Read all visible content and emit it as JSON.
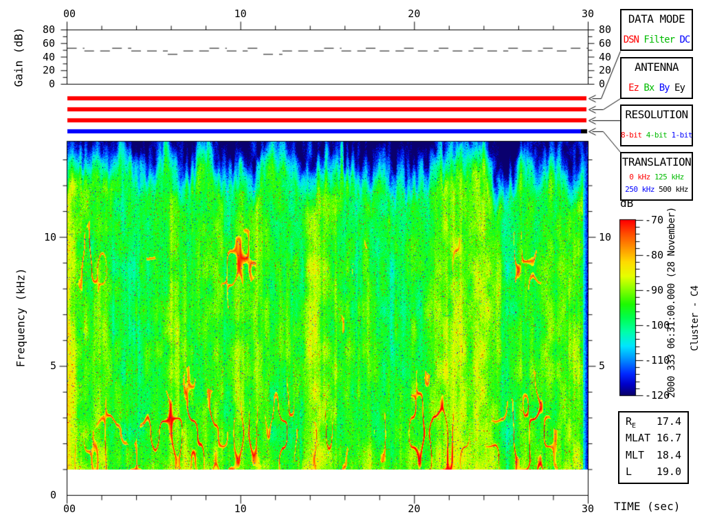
{
  "gain_panel": {
    "ylabel": "Gain (dB)",
    "top_tick_labels": [
      "00",
      "10",
      "20",
      "30"
    ],
    "top_tick_values": [
      0,
      10,
      20,
      30
    ],
    "top_minor_step_sec": 2,
    "ytick_labels": [
      "0",
      "20",
      "40",
      "60",
      "80"
    ],
    "ytick_values": [
      0,
      20,
      40,
      60,
      80
    ],
    "y_minor_step_db": 10
  },
  "status_bars": [
    {
      "name": "data-mode-selection-bar",
      "color": "#ff0000"
    },
    {
      "name": "antenna-selection-bar",
      "color": "#ff0000"
    },
    {
      "name": "resolution-selection-bar",
      "color": "#ff0000"
    },
    {
      "name": "translation-selection-bar",
      "color": "#0000ff",
      "tip_color": "#000000"
    }
  ],
  "info_boxes": [
    {
      "id": "data-mode",
      "title": "DATA MODE",
      "small": false,
      "lines": [
        [
          {
            "text": "DSN",
            "color": "#ff0000"
          },
          {
            "text": "Filter",
            "color": "#00bb00"
          },
          {
            "text": "DC",
            "color": "#0000ff"
          }
        ]
      ]
    },
    {
      "id": "antenna",
      "title": "ANTENNA",
      "small": false,
      "lines": [
        [
          {
            "text": "Ez",
            "color": "#ff0000"
          },
          {
            "text": "Bx",
            "color": "#00bb00"
          },
          {
            "text": "By",
            "color": "#0000ff"
          },
          {
            "text": "Ey",
            "color": "#000000"
          }
        ]
      ]
    },
    {
      "id": "resolution",
      "title": "RESOLUTION",
      "small": true,
      "lines": [
        [
          {
            "text": "8-bit",
            "color": "#ff0000"
          },
          {
            "text": "4-bit",
            "color": "#00bb00"
          },
          {
            "text": "1-bit",
            "color": "#0000ff"
          }
        ]
      ]
    },
    {
      "id": "translation",
      "title": "TRANSLATION",
      "small": true,
      "lines": [
        [
          {
            "text": "0 kHz",
            "color": "#ff0000"
          },
          {
            "text": "125 kHz",
            "color": "#00bb00"
          }
        ],
        [
          {
            "text": "250 kHz",
            "color": "#0000ff"
          },
          {
            "text": "500 kHz",
            "color": "#000000"
          }
        ]
      ]
    }
  ],
  "colorbar": {
    "label": "dB",
    "major_tick_labels": [
      "-70",
      "-80",
      "-90",
      "-100",
      "-110",
      "-120"
    ],
    "major_tick_values": [
      -70,
      -80,
      -90,
      -100,
      -110,
      -120
    ],
    "minor_step_db": 2,
    "db_max": -70,
    "db_min": -120
  },
  "side_text": {
    "datetime": "2000 333 06:31:00.000 (28 November)",
    "spacecraft": "Cluster - C4"
  },
  "ephemeris": {
    "rows": [
      {
        "label": "R",
        "sub": "E",
        "value": "17.4"
      },
      {
        "label": "MLAT",
        "sub": "",
        "value": "16.7"
      },
      {
        "label": "MLT",
        "sub": "",
        "value": "18.4"
      },
      {
        "label": "L",
        "sub": "",
        "value": "19.0"
      }
    ]
  },
  "time_axis": {
    "label": "TIME (sec)",
    "tick_labels": [
      "00",
      "10",
      "20",
      "30"
    ],
    "tick_values": [
      0,
      10,
      20,
      30
    ],
    "minor_step_sec": 2,
    "range_sec": [
      0,
      30
    ]
  },
  "freq_axis": {
    "label": "Frequency (kHz)",
    "major_ticks": [
      {
        "value": 0,
        "label": "0"
      },
      {
        "value": 5,
        "label": "5"
      },
      {
        "value": 10,
        "label": "10"
      }
    ],
    "minor_step_khz": 1
  },
  "chart_data": [
    {
      "type": "line",
      "name": "receiver-gain",
      "title": "Gain (dB) vs time",
      "xlabel": "TIME (sec)",
      "ylabel": "Gain (dB)",
      "xlim": [
        0,
        30
      ],
      "ylim": [
        0,
        80
      ],
      "line_style": "dashed-step",
      "segments_t0_t1_db": [
        [
          0,
          1.0,
          53
        ],
        [
          1.0,
          2.6,
          49
        ],
        [
          2.6,
          3.7,
          53
        ],
        [
          3.7,
          5.8,
          49
        ],
        [
          5.8,
          6.7,
          44
        ],
        [
          6.7,
          8.2,
          49
        ],
        [
          8.2,
          9.2,
          53
        ],
        [
          9.2,
          10.4,
          49
        ],
        [
          10.4,
          11.3,
          53
        ],
        [
          11.3,
          12.4,
          44
        ],
        [
          12.4,
          14.8,
          49
        ],
        [
          14.8,
          15.8,
          53
        ],
        [
          15.8,
          17.2,
          49
        ],
        [
          17.2,
          18.0,
          53
        ],
        [
          18.0,
          19.4,
          49
        ],
        [
          19.4,
          20.2,
          53
        ],
        [
          20.2,
          21.4,
          49
        ],
        [
          21.4,
          22.2,
          53
        ],
        [
          22.2,
          23.4,
          49
        ],
        [
          23.4,
          24.2,
          53
        ],
        [
          24.2,
          25.4,
          49
        ],
        [
          25.4,
          26.2,
          53
        ],
        [
          26.2,
          27.4,
          49
        ],
        [
          27.4,
          28.2,
          53
        ],
        [
          28.2,
          29.0,
          49
        ],
        [
          29.0,
          30,
          53
        ]
      ]
    },
    {
      "type": "heatmap",
      "name": "wbd-spectrogram",
      "xlabel": "TIME (sec)",
      "ylabel": "Frequency (kHz)",
      "xlim_sec": [
        0,
        30
      ],
      "ylim_khz": [
        0,
        13.7
      ],
      "data_freq_range_khz": [
        1.0,
        13.7
      ],
      "value_range_db": [
        -120,
        -70
      ],
      "colorbar_label": "dB",
      "color_stops_db_rgb": [
        [
          -120,
          10,
          0,
          110
        ],
        [
          -117,
          0,
          0,
          200
        ],
        [
          -114,
          0,
          40,
          255
        ],
        [
          -110,
          0,
          140,
          255
        ],
        [
          -106,
          0,
          230,
          255
        ],
        [
          -102,
          0,
          255,
          170
        ],
        [
          -98,
          0,
          255,
          80
        ],
        [
          -94,
          30,
          250,
          0
        ],
        [
          -90,
          130,
          255,
          0
        ],
        [
          -86,
          230,
          255,
          0
        ],
        [
          -82,
          255,
          220,
          0
        ],
        [
          -78,
          255,
          150,
          0
        ],
        [
          -74,
          255,
          80,
          0
        ],
        [
          -70,
          255,
          0,
          0
        ]
      ],
      "texture": {
        "seed": 7,
        "base_db": -96.5,
        "upper_cutoff_khz": 11.9,
        "cutoff_wander_khz": 2.2,
        "striation_db": 11,
        "fine_noise_db": 7,
        "speckle_db": 7,
        "red_burst_db": -72,
        "dark_speckle_db": -115,
        "right_edge_dark": true,
        "description": "bright green broadband emission 1-12 kHz with vertical striations, filamentary red bursts, navy noise band above cutoff"
      }
    }
  ]
}
